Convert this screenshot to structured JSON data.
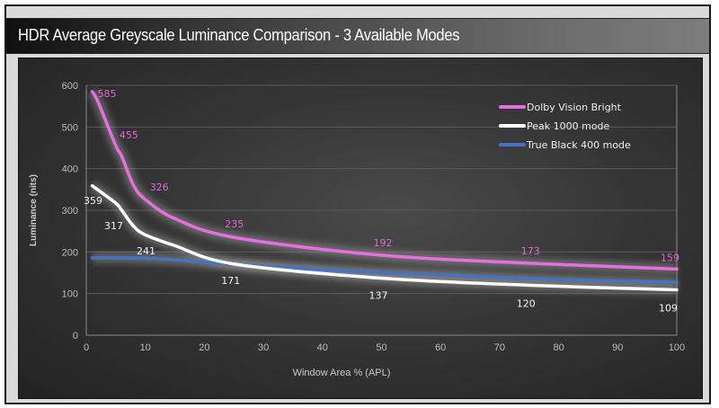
{
  "header": {
    "title": "HDR Average Greyscale Luminance Comparison - 3 Available Modes"
  },
  "chart_data": {
    "type": "line",
    "title": "HDR Average Greyscale Luminance Comparison - 3 Available Modes",
    "xlabel": "Window Area % (APL)",
    "ylabel": "Luminance (nits)",
    "xlim": [
      0,
      100
    ],
    "ylim": [
      0,
      600
    ],
    "xticks": [
      0,
      10,
      20,
      30,
      40,
      50,
      60,
      70,
      80,
      90,
      100
    ],
    "yticks": [
      0,
      100,
      200,
      300,
      400,
      500,
      600
    ],
    "grid": true,
    "legend_position": "top-right",
    "series": [
      {
        "name": "Dolby Vision Bright",
        "color": "#e86de0",
        "x": [
          1,
          2,
          5,
          6,
          8,
          10,
          15,
          25,
          50,
          75,
          100
        ],
        "values": [
          585,
          560,
          455,
          430,
          360,
          326,
          280,
          235,
          192,
          173,
          159
        ],
        "data_labels": [
          {
            "x": 1,
            "value": 585
          },
          {
            "x": 5,
            "value": 455
          },
          {
            "x": 10,
            "value": 326
          },
          {
            "x": 25,
            "value": 235
          },
          {
            "x": 50,
            "value": 192
          },
          {
            "x": 75,
            "value": 173
          },
          {
            "x": 100,
            "value": 159
          }
        ]
      },
      {
        "name": "Peak 1000 mode",
        "color": "#ffffff",
        "x": [
          1,
          5,
          6,
          8,
          10,
          15,
          25,
          50,
          75,
          100
        ],
        "values": [
          359,
          317,
          300,
          262,
          241,
          215,
          171,
          137,
          120,
          109
        ],
        "data_labels": [
          {
            "x": 1,
            "value": 359
          },
          {
            "x": 5,
            "value": 317
          },
          {
            "x": 10,
            "value": 241
          },
          {
            "x": 25,
            "value": 171
          },
          {
            "x": 50,
            "value": 137
          },
          {
            "x": 75,
            "value": 120
          },
          {
            "x": 100,
            "value": 109
          }
        ]
      },
      {
        "name": "True Black 400 mode",
        "color": "#4472c4",
        "x": [
          1,
          5,
          10,
          15,
          25,
          50,
          75,
          100
        ],
        "values": [
          186,
          186,
          185,
          181,
          170,
          150,
          136,
          127
        ],
        "data_labels": []
      }
    ]
  }
}
